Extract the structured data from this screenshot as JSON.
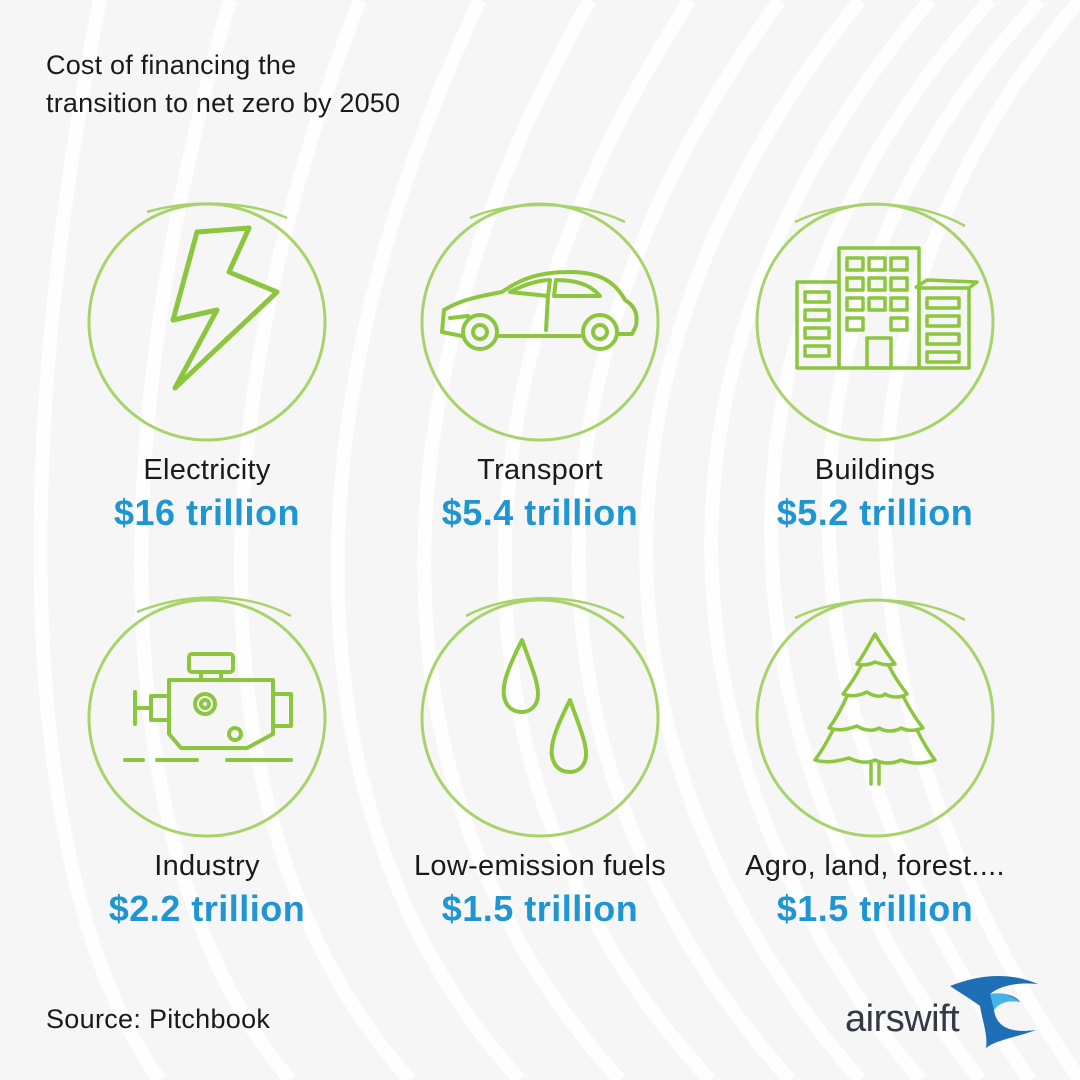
{
  "title": {
    "line1": "Cost of financing the",
    "line2": "transition to net zero by 2050"
  },
  "items": [
    {
      "label": "Electricity",
      "amount": "$16 trillion",
      "icon": "lightning-bolt-icon"
    },
    {
      "label": "Transport",
      "amount": "$5.4 trillion",
      "icon": "car-icon"
    },
    {
      "label": "Buildings",
      "amount": "$5.2 trillion",
      "icon": "buildings-icon"
    },
    {
      "label": "Industry",
      "amount": "$2.2 trillion",
      "icon": "engine-icon"
    },
    {
      "label": "Low-emission fuels",
      "amount": "$1.5 trillion",
      "icon": "fuel-drops-icon"
    },
    {
      "label": "Agro, land, forest....",
      "amount": "$1.5 trillion",
      "icon": "pine-tree-icon"
    }
  ],
  "source": "Source: Pitchbook",
  "logo": {
    "text": "airswift"
  },
  "colors": {
    "icon_green": "#8cc63f",
    "amount_blue": "#1f95d2",
    "text": "#1a1a1a"
  }
}
